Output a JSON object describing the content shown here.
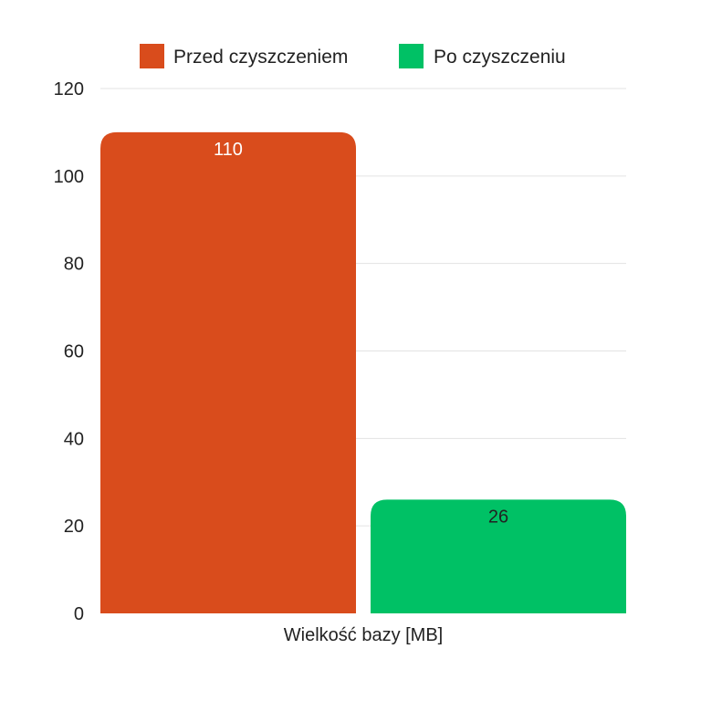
{
  "chart_data": {
    "type": "bar",
    "categories": [
      "Wielkość bazy [MB]"
    ],
    "series": [
      {
        "name": "Przed czyszczeniem",
        "values": [
          110
        ],
        "color": "#d94c1c",
        "label_color": "#ffffff"
      },
      {
        "name": "Po czyszczeniu",
        "values": [
          26
        ],
        "color": "#00c165",
        "label_color": "#222222"
      }
    ],
    "yticks": [
      "0",
      "20",
      "40",
      "60",
      "80",
      "100",
      "120"
    ],
    "ylim": [
      0,
      120
    ],
    "grid": true,
    "legend_position": "top"
  }
}
